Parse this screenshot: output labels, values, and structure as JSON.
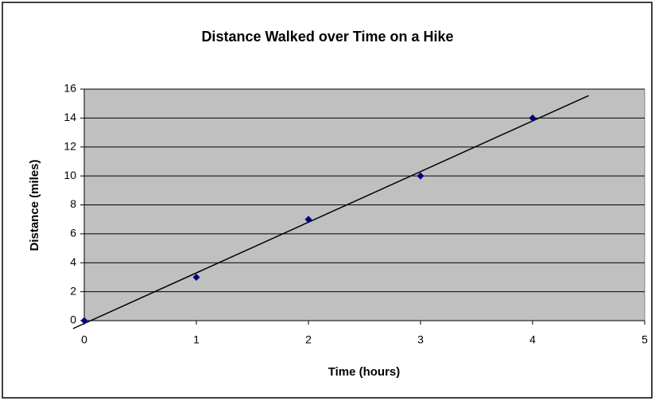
{
  "chart_data": {
    "type": "scatter",
    "title": "Distance Walked over Time on a Hike",
    "x_label": "Time (hours)",
    "y_label": "Distance (miles)",
    "x": [
      0,
      1,
      2,
      3,
      4
    ],
    "values": [
      0,
      3,
      7,
      10,
      14
    ],
    "color": "#000080",
    "xlim": [
      0,
      5
    ],
    "xticks": [
      0,
      1,
      2,
      3,
      4,
      5
    ],
    "ylim": [
      0,
      16
    ],
    "yticks": [
      0,
      2,
      4,
      6,
      8,
      10,
      12,
      14,
      16
    ],
    "grid": true,
    "plot_background": "#c0c0c0",
    "trendline": {
      "type": "linear",
      "color": "#000000",
      "forward": 0.5,
      "backward": 0.1
    }
  }
}
